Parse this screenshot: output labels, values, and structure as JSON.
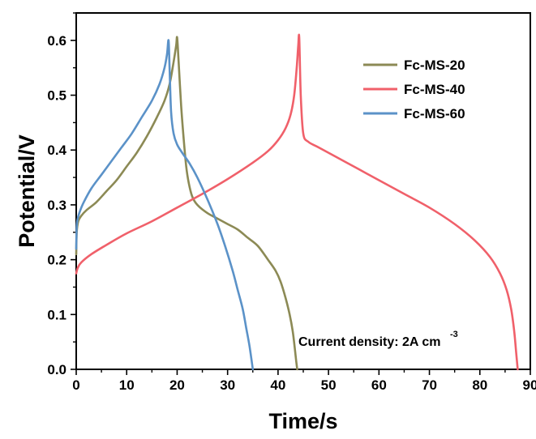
{
  "chart_data": {
    "type": "line",
    "xlabel": "Time/s",
    "ylabel": "Potential/V",
    "xlim": [
      0,
      90
    ],
    "ylim": [
      0,
      0.65
    ],
    "xticks": [
      0,
      10,
      20,
      30,
      40,
      50,
      60,
      70,
      80,
      90
    ],
    "yticks": [
      0.0,
      0.1,
      0.2,
      0.3,
      0.4,
      0.5,
      0.6
    ],
    "xtick_labels": [
      "0",
      "10",
      "20",
      "30",
      "40",
      "50",
      "60",
      "70",
      "80",
      "90"
    ],
    "ytick_labels": [
      "0.0",
      "0.1",
      "0.2",
      "0.3",
      "0.4",
      "0.5",
      "0.6"
    ],
    "grid": false,
    "legend_position": "top-right",
    "annotation": {
      "text": "Current density: 2A cm",
      "superscript": "-3"
    },
    "series": [
      {
        "name": "Fc-MS-20",
        "color": "#8c8a55",
        "x": [
          0,
          0.1,
          0.4,
          1,
          2,
          4,
          6,
          8,
          10,
          12,
          14,
          16,
          17.5,
          18.5,
          19.2,
          19.8,
          20.0,
          20.3,
          20.8,
          21.3,
          21.8,
          22.3,
          23,
          24,
          26,
          28,
          30,
          32,
          34,
          36,
          38,
          39.5,
          40.5,
          41.5,
          42.3,
          42.9,
          43.3,
          43.6,
          43.8
        ],
        "y": [
          0.21,
          0.25,
          0.27,
          0.28,
          0.29,
          0.305,
          0.325,
          0.345,
          0.37,
          0.395,
          0.425,
          0.46,
          0.49,
          0.52,
          0.555,
          0.59,
          0.605,
          0.56,
          0.48,
          0.42,
          0.37,
          0.34,
          0.315,
          0.3,
          0.285,
          0.275,
          0.265,
          0.255,
          0.24,
          0.225,
          0.2,
          0.18,
          0.16,
          0.13,
          0.1,
          0.07,
          0.04,
          0.015,
          0.0
        ]
      },
      {
        "name": "Fc-MS-40",
        "color": "#f0606a",
        "x": [
          0,
          0.3,
          1,
          3,
          6,
          10,
          15,
          20,
          25,
          30,
          35,
          38,
          40,
          41.5,
          42.5,
          43.2,
          43.7,
          44.0,
          44.2,
          44.5,
          45,
          46,
          48,
          52,
          56,
          60,
          65,
          70,
          75,
          79,
          82,
          84,
          85.3,
          86.2,
          86.8,
          87.2,
          87.5
        ],
        "y": [
          0.175,
          0.185,
          0.195,
          0.21,
          0.227,
          0.248,
          0.27,
          0.295,
          0.32,
          0.347,
          0.377,
          0.398,
          0.418,
          0.44,
          0.465,
          0.5,
          0.55,
          0.59,
          0.605,
          0.5,
          0.43,
          0.415,
          0.405,
          0.385,
          0.365,
          0.345,
          0.32,
          0.295,
          0.265,
          0.235,
          0.205,
          0.175,
          0.145,
          0.11,
          0.07,
          0.03,
          0.0
        ]
      },
      {
        "name": "Fc-MS-60",
        "color": "#5b92c8",
        "x": [
          0,
          0.1,
          0.3,
          0.8,
          1.5,
          3,
          5,
          7,
          9,
          11,
          13,
          15,
          16.5,
          17.5,
          18.0,
          18.3,
          18.5,
          18.8,
          19.3,
          20,
          21,
          22.5,
          24,
          26,
          28,
          29.5,
          31,
          32,
          33,
          33.7,
          34.3,
          34.7,
          35.0
        ],
        "y": [
          0.22,
          0.26,
          0.275,
          0.29,
          0.305,
          0.33,
          0.355,
          0.38,
          0.405,
          0.43,
          0.46,
          0.49,
          0.52,
          0.55,
          0.575,
          0.6,
          0.55,
          0.47,
          0.43,
          0.41,
          0.395,
          0.375,
          0.35,
          0.31,
          0.265,
          0.225,
          0.18,
          0.145,
          0.11,
          0.075,
          0.045,
          0.02,
          0.0
        ]
      }
    ]
  }
}
